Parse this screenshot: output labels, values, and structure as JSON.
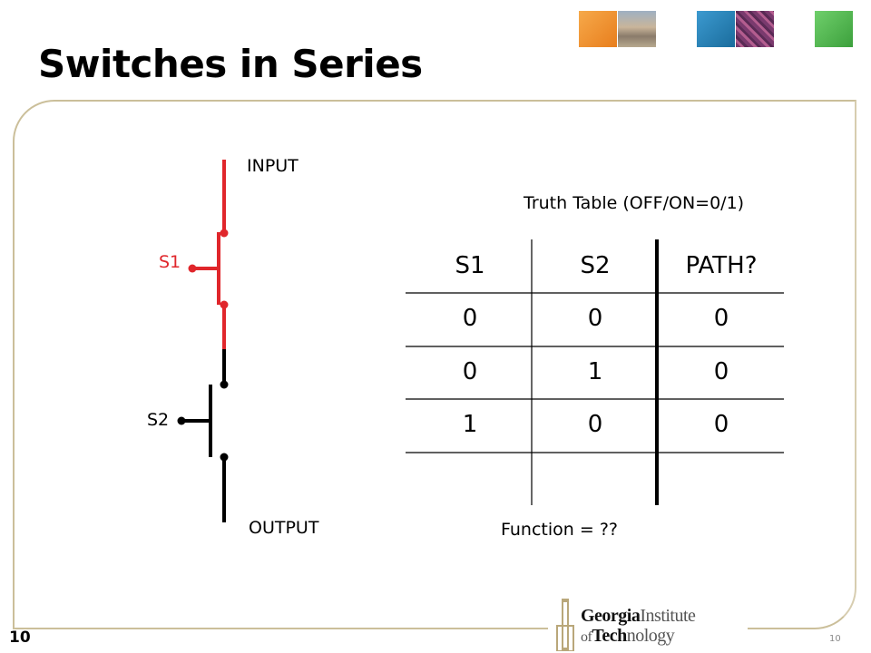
{
  "slide": {
    "title": "Switches in Series",
    "page_number_left": "10",
    "page_number_right": "10"
  },
  "circuit": {
    "input_label": "INPUT",
    "output_label": "OUTPUT",
    "switch1_label": "S1",
    "switch2_label": "S2",
    "switch1_color": "#e0262b",
    "wire_color": "#000000"
  },
  "truth_table": {
    "caption": "Truth Table (OFF/ON=0/1)",
    "headers": [
      "S1",
      "S2",
      "PATH?"
    ],
    "rows": [
      [
        "0",
        "0",
        "0"
      ],
      [
        "0",
        "1",
        "0"
      ],
      [
        "1",
        "0",
        "0"
      ]
    ],
    "function_label": "Function = ??"
  },
  "logo": {
    "line1_bold": "Georgia",
    "line1_rest": "Institute",
    "line2_prefix": "of",
    "line2_bold": "Tech",
    "line2_rest": "nology"
  },
  "colors": {
    "panel_border": "#cbbf9a",
    "thumb_orange": "#f0922c",
    "thumb_blue": "#2a83b5",
    "thumb_green": "#5cb85c"
  }
}
